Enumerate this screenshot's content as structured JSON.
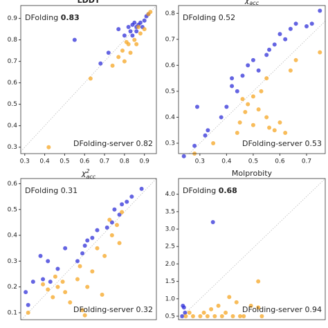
{
  "chart_data": [
    {
      "type": "scatter",
      "title": "LDDT",
      "diagonal": true,
      "xlim": [
        0.28,
        0.96
      ],
      "ylim": [
        0.27,
        0.96
      ],
      "xticks": [
        0.3,
        0.4,
        0.5,
        0.6,
        0.7,
        0.8,
        0.9
      ],
      "yticks": [
        0.3,
        0.4,
        0.5,
        0.6,
        0.7,
        0.8,
        0.9
      ],
      "annotations": [
        {
          "text": "DFolding",
          "score": 0.83,
          "bold": true
        },
        {
          "text": "DFolding-server",
          "score": 0.82,
          "bold": false
        }
      ],
      "series": [
        {
          "color": "#3030d8",
          "x": [
            0.55,
            0.68,
            0.72,
            0.77,
            0.8,
            0.82,
            0.83,
            0.84,
            0.85,
            0.86,
            0.87,
            0.88,
            0.89,
            0.9,
            0.91,
            0.92,
            0.84,
            0.86
          ],
          "values": [
            0.8,
            0.69,
            0.74,
            0.85,
            0.82,
            0.86,
            0.84,
            0.87,
            0.88,
            0.86,
            0.87,
            0.88,
            0.86,
            0.89,
            0.91,
            0.92,
            0.82,
            0.84
          ]
        },
        {
          "color": "#f5a623",
          "x": [
            0.42,
            0.63,
            0.74,
            0.77,
            0.79,
            0.8,
            0.82,
            0.83,
            0.85,
            0.86,
            0.88,
            0.9,
            0.92,
            0.93,
            0.81,
            0.87
          ],
          "values": [
            0.3,
            0.62,
            0.68,
            0.72,
            0.75,
            0.7,
            0.78,
            0.74,
            0.8,
            0.78,
            0.83,
            0.85,
            0.92,
            0.93,
            0.79,
            0.86
          ]
        }
      ]
    },
    {
      "type": "scatter",
      "title": {
        "symbol": "χ",
        "sub": "acc"
      },
      "diagonal": true,
      "xlim": [
        0.22,
        0.77
      ],
      "ylim": [
        0.26,
        0.83
      ],
      "xticks": [
        0.3,
        0.4,
        0.5,
        0.6,
        0.7
      ],
      "yticks": [
        0.3,
        0.4,
        0.5,
        0.6,
        0.7,
        0.8
      ],
      "annotations": [
        {
          "text": "DFolding",
          "score": 0.52,
          "bold": false
        },
        {
          "text": "DFolding-server",
          "score": 0.53,
          "bold": false
        }
      ],
      "series": [
        {
          "color": "#3030d8",
          "x": [
            0.24,
            0.28,
            0.29,
            0.32,
            0.33,
            0.38,
            0.4,
            0.42,
            0.42,
            0.44,
            0.46,
            0.48,
            0.5,
            0.52,
            0.55,
            0.56,
            0.58,
            0.6,
            0.62,
            0.64,
            0.66,
            0.7,
            0.72,
            0.75
          ],
          "values": [
            0.25,
            0.29,
            0.44,
            0.33,
            0.35,
            0.4,
            0.44,
            0.52,
            0.55,
            0.5,
            0.56,
            0.6,
            0.62,
            0.58,
            0.64,
            0.66,
            0.68,
            0.72,
            0.7,
            0.74,
            0.76,
            0.75,
            0.76,
            0.81
          ]
        },
        {
          "color": "#f5a623",
          "x": [
            0.28,
            0.35,
            0.44,
            0.45,
            0.47,
            0.48,
            0.5,
            0.5,
            0.52,
            0.53,
            0.55,
            0.55,
            0.58,
            0.6,
            0.62,
            0.64,
            0.66,
            0.75,
            0.46,
            0.56
          ],
          "values": [
            0.26,
            0.3,
            0.34,
            0.38,
            0.42,
            0.45,
            0.37,
            0.48,
            0.43,
            0.5,
            0.4,
            0.55,
            0.35,
            0.38,
            0.34,
            0.58,
            0.62,
            0.65,
            0.47,
            0.36
          ]
        }
      ]
    },
    {
      "type": "scatter",
      "title": {
        "symbol": "χ",
        "sup": "2",
        "sub": "acc"
      },
      "diagonal": true,
      "xlim": [
        0.07,
        0.62
      ],
      "ylim": [
        0.073,
        0.62
      ],
      "yticks": [
        0.1,
        0.2,
        0.3,
        0.4,
        0.5,
        0.6
      ],
      "annotations": [
        {
          "text": "DFolding",
          "score": 0.31,
          "bold": false
        },
        {
          "text": "DFolding-server",
          "score": 0.32,
          "bold": false
        }
      ],
      "series": [
        {
          "color": "#3030d8",
          "x": [
            0.09,
            0.1,
            0.12,
            0.15,
            0.16,
            0.18,
            0.19,
            0.22,
            0.25,
            0.3,
            0.32,
            0.33,
            0.34,
            0.36,
            0.38,
            0.42,
            0.44,
            0.45,
            0.47,
            0.48,
            0.5,
            0.52,
            0.56
          ],
          "values": [
            0.18,
            0.13,
            0.22,
            0.32,
            0.23,
            0.3,
            0.22,
            0.27,
            0.35,
            0.3,
            0.33,
            0.36,
            0.38,
            0.39,
            0.42,
            0.43,
            0.45,
            0.5,
            0.48,
            0.52,
            0.53,
            0.55,
            0.58
          ]
        },
        {
          "color": "#f5a623",
          "x": [
            0.1,
            0.16,
            0.18,
            0.2,
            0.21,
            0.22,
            0.24,
            0.25,
            0.27,
            0.3,
            0.31,
            0.32,
            0.33,
            0.34,
            0.36,
            0.38,
            0.4,
            0.41,
            0.43,
            0.44,
            0.46,
            0.47,
            0.48
          ],
          "values": [
            0.1,
            0.21,
            0.19,
            0.16,
            0.24,
            0.2,
            0.22,
            0.18,
            0.14,
            0.23,
            0.28,
            0.11,
            0.09,
            0.2,
            0.26,
            0.35,
            0.17,
            0.32,
            0.46,
            0.4,
            0.44,
            0.37,
            0.49
          ]
        }
      ]
    },
    {
      "type": "scatter",
      "title": "Molprobity",
      "diagonal": true,
      "xlim": [
        0.4,
        4.45
      ],
      "ylim": [
        0.4,
        4.45
      ],
      "yticks": [
        {
          "value": 0.5,
          "label": "0.5"
        },
        {
          "value": 1,
          "label": "1.0"
        },
        {
          "value": 1.5,
          "label": "1.5"
        },
        {
          "value": 2,
          "label": "2.0"
        },
        {
          "value": 2.5,
          "label": "2.5"
        },
        {
          "value": 3,
          "label": "3.0"
        },
        {
          "value": 3.5,
          "label": "3.5"
        },
        {
          "value": 4,
          "label": "4.0"
        }
      ],
      "annotations": [
        {
          "text": "DFolding",
          "score": 0.68,
          "bold": true
        },
        {
          "text": "DFolding-server",
          "score": 0.94,
          "bold": false
        }
      ],
      "series": [
        {
          "color": "#3030d8",
          "x": [
            0.5,
            0.52,
            0.55,
            0.58,
            1.35
          ],
          "values": [
            0.5,
            0.8,
            0.75,
            0.6,
            3.2
          ]
        },
        {
          "color": "#f5a623",
          "x": [
            0.6,
            0.8,
            1.0,
            1.1,
            1.2,
            1.3,
            1.4,
            1.5,
            1.6,
            1.7,
            1.8,
            1.9,
            2.0,
            2.1,
            2.2,
            2.4,
            2.6,
            2.6,
            2.7,
            0.7
          ],
          "values": [
            0.5,
            0.5,
            0.5,
            0.6,
            0.5,
            0.7,
            0.5,
            0.8,
            0.5,
            0.6,
            1.05,
            0.5,
            0.9,
            0.5,
            0.5,
            0.8,
            1.5,
            0.75,
            0.5,
            0.6
          ]
        }
      ]
    }
  ]
}
